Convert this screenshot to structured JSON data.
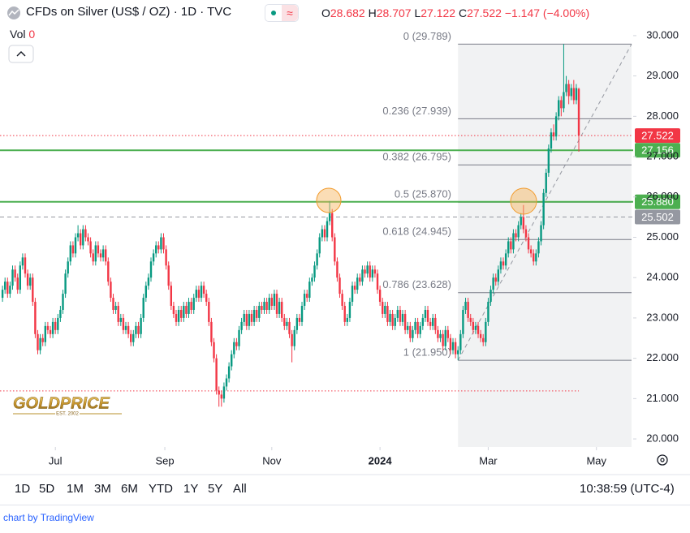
{
  "header": {
    "title": "CFDs on Silver (US$ / OZ) · 1D · TVC",
    "o": "O",
    "h": "H",
    "l": "L",
    "c": "C",
    "change": "−1.147 (−4.00%)",
    "vol": "Vol",
    "vol_value": 0
  },
  "chart_data": {
    "type": "candlestick",
    "up_color": "#089981",
    "down_color": "#f23645",
    "ohlc": [
      [
        23.5,
        23.8,
        23.4,
        23.7
      ],
      [
        23.7,
        24.0,
        23.6,
        23.9
      ],
      [
        23.9,
        24.0,
        23.5,
        23.6
      ],
      [
        23.6,
        23.9,
        23.5,
        23.8
      ],
      [
        23.8,
        24.3,
        23.7,
        24.2
      ],
      [
        24.2,
        24.3,
        23.9,
        24.0
      ],
      [
        24.0,
        24.1,
        23.6,
        23.7
      ],
      [
        23.7,
        24.4,
        23.6,
        24.3
      ],
      [
        24.3,
        24.6,
        24.2,
        24.5
      ],
      [
        24.5,
        24.6,
        24.0,
        24.1
      ],
      [
        24.1,
        24.2,
        23.7,
        23.8
      ],
      [
        23.8,
        24.1,
        23.7,
        24.0
      ],
      [
        24.0,
        24.1,
        23.3,
        23.4
      ],
      [
        23.4,
        23.5,
        22.5,
        22.6
      ],
      [
        22.6,
        22.7,
        22.1,
        22.2
      ],
      [
        22.2,
        22.6,
        22.1,
        22.5
      ],
      [
        22.5,
        22.6,
        22.3,
        22.4
      ],
      [
        22.4,
        22.9,
        22.3,
        22.8
      ],
      [
        22.8,
        22.9,
        22.6,
        22.7
      ],
      [
        22.7,
        22.8,
        22.5,
        22.6
      ],
      [
        22.6,
        23.0,
        22.5,
        22.9
      ],
      [
        22.9,
        23.0,
        22.6,
        22.7
      ],
      [
        22.7,
        23.1,
        22.6,
        23.0
      ],
      [
        23.0,
        23.3,
        22.9,
        23.2
      ],
      [
        23.2,
        23.7,
        23.1,
        23.6
      ],
      [
        23.6,
        24.2,
        23.5,
        24.1
      ],
      [
        24.1,
        24.5,
        24.0,
        24.4
      ],
      [
        24.4,
        24.9,
        24.3,
        24.8
      ],
      [
        24.8,
        24.9,
        24.5,
        24.6
      ],
      [
        24.6,
        25.1,
        24.5,
        25.0
      ],
      [
        25.0,
        25.3,
        24.9,
        25.1
      ],
      [
        25.1,
        25.2,
        24.7,
        24.8
      ],
      [
        24.8,
        25.3,
        24.7,
        25.2
      ],
      [
        25.2,
        25.3,
        24.9,
        25.0
      ],
      [
        25.0,
        25.1,
        24.8,
        24.9
      ],
      [
        24.9,
        25.0,
        24.5,
        24.6
      ],
      [
        24.6,
        24.7,
        24.3,
        24.4
      ],
      [
        24.4,
        24.9,
        24.3,
        24.8
      ],
      [
        24.8,
        24.9,
        24.5,
        24.6
      ],
      [
        24.6,
        24.7,
        24.4,
        24.5
      ],
      [
        24.5,
        24.8,
        24.4,
        24.7
      ],
      [
        24.7,
        24.8,
        24.3,
        24.4
      ],
      [
        24.4,
        24.5,
        23.8,
        23.9
      ],
      [
        23.9,
        24.0,
        23.4,
        23.5
      ],
      [
        23.5,
        23.6,
        23.1,
        23.2
      ],
      [
        23.2,
        23.4,
        23.1,
        23.3
      ],
      [
        23.3,
        23.4,
        22.8,
        22.9
      ],
      [
        22.9,
        23.1,
        22.8,
        23.0
      ],
      [
        23.0,
        23.1,
        22.6,
        22.7
      ],
      [
        22.7,
        22.9,
        22.6,
        22.8
      ],
      [
        22.8,
        22.9,
        22.5,
        22.6
      ],
      [
        22.6,
        22.7,
        22.3,
        22.4
      ],
      [
        22.4,
        22.7,
        22.3,
        22.6
      ],
      [
        22.6,
        22.9,
        22.5,
        22.8
      ],
      [
        22.8,
        22.9,
        22.5,
        22.6
      ],
      [
        22.6,
        23.1,
        22.5,
        23.0
      ],
      [
        23.0,
        23.6,
        22.9,
        23.5
      ],
      [
        23.5,
        23.9,
        23.4,
        23.8
      ],
      [
        23.8,
        24.1,
        23.7,
        24.0
      ],
      [
        24.0,
        24.5,
        23.9,
        24.4
      ],
      [
        24.4,
        24.7,
        24.3,
        24.6
      ],
      [
        24.6,
        24.9,
        24.5,
        24.8
      ],
      [
        24.8,
        24.9,
        24.6,
        24.7
      ],
      [
        24.7,
        25.1,
        24.6,
        25.0
      ],
      [
        25.0,
        25.1,
        24.6,
        24.7
      ],
      [
        24.7,
        24.8,
        24.2,
        24.3
      ],
      [
        24.3,
        24.4,
        23.7,
        23.8
      ],
      [
        23.8,
        23.9,
        23.2,
        23.3
      ],
      [
        23.3,
        23.4,
        23.0,
        23.1
      ],
      [
        23.1,
        23.2,
        22.8,
        22.9
      ],
      [
        22.9,
        23.3,
        22.8,
        23.2
      ],
      [
        23.2,
        23.3,
        22.9,
        23.0
      ],
      [
        23.0,
        23.4,
        22.9,
        23.3
      ],
      [
        23.3,
        23.4,
        23.0,
        23.1
      ],
      [
        23.1,
        23.5,
        23.0,
        23.4
      ],
      [
        23.4,
        23.5,
        23.1,
        23.2
      ],
      [
        23.2,
        23.6,
        23.1,
        23.5
      ],
      [
        23.5,
        23.8,
        23.4,
        23.7
      ],
      [
        23.7,
        23.8,
        23.4,
        23.5
      ],
      [
        23.5,
        23.9,
        23.4,
        23.8
      ],
      [
        23.8,
        23.9,
        23.5,
        23.6
      ],
      [
        23.6,
        23.7,
        23.3,
        23.4
      ],
      [
        23.4,
        23.5,
        22.8,
        22.9
      ],
      [
        22.9,
        23.0,
        22.3,
        22.4
      ],
      [
        22.4,
        22.5,
        21.9,
        22.0
      ],
      [
        22.0,
        22.1,
        21.1,
        21.2
      ],
      [
        21.2,
        21.3,
        20.8,
        21.1
      ],
      [
        21.1,
        21.2,
        20.8,
        21.0
      ],
      [
        21.0,
        21.4,
        20.9,
        21.3
      ],
      [
        21.3,
        21.6,
        21.2,
        21.5
      ],
      [
        21.5,
        21.9,
        21.4,
        21.8
      ],
      [
        21.8,
        22.2,
        21.7,
        22.1
      ],
      [
        22.1,
        22.5,
        22.0,
        22.4
      ],
      [
        22.4,
        22.5,
        22.2,
        22.3
      ],
      [
        22.3,
        22.8,
        22.2,
        22.7
      ],
      [
        22.7,
        23.0,
        22.6,
        22.9
      ],
      [
        22.9,
        23.2,
        22.8,
        23.1
      ],
      [
        23.1,
        23.2,
        22.7,
        22.8
      ],
      [
        22.8,
        23.2,
        22.7,
        23.1
      ],
      [
        23.1,
        23.2,
        22.8,
        22.9
      ],
      [
        22.9,
        23.3,
        22.8,
        23.2
      ],
      [
        23.2,
        23.3,
        22.9,
        23.0
      ],
      [
        23.0,
        23.4,
        22.9,
        23.3
      ],
      [
        23.3,
        23.4,
        23.1,
        23.2
      ],
      [
        23.2,
        23.5,
        23.1,
        23.4
      ],
      [
        23.4,
        23.5,
        23.1,
        23.2
      ],
      [
        23.2,
        23.6,
        23.1,
        23.5
      ],
      [
        23.5,
        23.6,
        23.2,
        23.3
      ],
      [
        23.3,
        23.7,
        23.2,
        23.6
      ],
      [
        23.6,
        23.7,
        23.0,
        23.1
      ],
      [
        23.1,
        23.5,
        23.0,
        23.4
      ],
      [
        23.4,
        23.5,
        22.9,
        23.0
      ],
      [
        23.0,
        23.1,
        22.7,
        22.8
      ],
      [
        22.8,
        23.0,
        22.7,
        22.9
      ],
      [
        22.9,
        23.0,
        22.5,
        22.6
      ],
      [
        22.6,
        22.7,
        21.9,
        22.3
      ],
      [
        22.3,
        22.8,
        22.2,
        22.7
      ],
      [
        22.7,
        23.1,
        22.6,
        23.0
      ],
      [
        23.0,
        23.1,
        22.8,
        22.9
      ],
      [
        22.9,
        23.4,
        22.8,
        23.3
      ],
      [
        23.3,
        23.7,
        23.2,
        23.6
      ],
      [
        23.6,
        23.7,
        23.4,
        23.5
      ],
      [
        23.5,
        24.0,
        23.4,
        23.9
      ],
      [
        23.9,
        24.1,
        23.8,
        24.0
      ],
      [
        24.0,
        24.4,
        23.9,
        24.3
      ],
      [
        24.3,
        24.7,
        24.2,
        24.6
      ],
      [
        24.6,
        25.1,
        24.5,
        25.0
      ],
      [
        25.0,
        25.3,
        24.9,
        25.2
      ],
      [
        25.2,
        25.3,
        24.9,
        25.0
      ],
      [
        25.0,
        25.5,
        24.9,
        25.4
      ],
      [
        25.4,
        25.9,
        25.3,
        25.6
      ],
      [
        25.6,
        25.7,
        24.9,
        25.0
      ],
      [
        25.0,
        25.1,
        24.3,
        24.4
      ],
      [
        24.4,
        24.5,
        23.9,
        24.0
      ],
      [
        24.0,
        24.1,
        23.5,
        23.6
      ],
      [
        23.6,
        23.7,
        23.2,
        23.3
      ],
      [
        23.3,
        23.4,
        22.8,
        22.9
      ],
      [
        22.9,
        23.1,
        22.8,
        23.0
      ],
      [
        23.0,
        23.5,
        22.9,
        23.4
      ],
      [
        23.4,
        23.9,
        23.3,
        23.8
      ],
      [
        23.8,
        23.9,
        23.6,
        23.7
      ],
      [
        23.7,
        24.1,
        23.6,
        24.0
      ],
      [
        24.0,
        24.1,
        23.8,
        23.9
      ],
      [
        23.9,
        24.3,
        23.8,
        24.2
      ],
      [
        24.2,
        24.3,
        24.0,
        24.1
      ],
      [
        24.1,
        24.4,
        24.0,
        24.3
      ],
      [
        24.3,
        24.4,
        23.9,
        24.0
      ],
      [
        24.0,
        24.3,
        23.9,
        24.2
      ],
      [
        24.2,
        24.3,
        24.0,
        24.1
      ],
      [
        24.1,
        24.2,
        23.6,
        23.7
      ],
      [
        23.7,
        23.8,
        23.3,
        23.4
      ],
      [
        23.4,
        23.5,
        23.0,
        23.1
      ],
      [
        23.1,
        23.4,
        23.0,
        23.3
      ],
      [
        23.3,
        23.4,
        22.8,
        22.9
      ],
      [
        22.9,
        23.2,
        22.8,
        23.1
      ],
      [
        23.1,
        23.2,
        22.7,
        22.8
      ],
      [
        22.8,
        23.1,
        22.7,
        23.0
      ],
      [
        23.0,
        23.3,
        22.9,
        23.2
      ],
      [
        23.2,
        23.3,
        22.8,
        22.9
      ],
      [
        22.9,
        23.2,
        22.8,
        23.1
      ],
      [
        23.1,
        23.2,
        22.6,
        22.7
      ],
      [
        22.7,
        22.9,
        22.6,
        22.8
      ],
      [
        22.8,
        22.9,
        22.4,
        22.5
      ],
      [
        22.5,
        22.8,
        22.4,
        22.7
      ],
      [
        22.7,
        23.0,
        22.6,
        22.9
      ],
      [
        22.9,
        23.0,
        22.5,
        22.6
      ],
      [
        22.6,
        22.9,
        22.5,
        22.8
      ],
      [
        22.8,
        23.1,
        22.7,
        23.0
      ],
      [
        23.0,
        23.3,
        22.9,
        23.2
      ],
      [
        23.2,
        23.3,
        22.8,
        22.9
      ],
      [
        22.9,
        23.0,
        22.7,
        22.8
      ],
      [
        22.8,
        23.1,
        22.7,
        23.0
      ],
      [
        23.0,
        23.1,
        22.6,
        22.7
      ],
      [
        22.7,
        22.8,
        22.4,
        22.5
      ],
      [
        22.5,
        22.7,
        22.4,
        22.6
      ],
      [
        22.6,
        22.7,
        22.2,
        22.3
      ],
      [
        22.3,
        22.8,
        22.2,
        22.7
      ],
      [
        22.7,
        22.8,
        22.4,
        22.5
      ],
      [
        22.5,
        22.6,
        22.1,
        22.2
      ],
      [
        22.2,
        22.5,
        22.1,
        22.4
      ],
      [
        22.4,
        22.5,
        22.0,
        22.1
      ],
      [
        22.1,
        22.3,
        21.95,
        22.2
      ],
      [
        22.2,
        22.7,
        22.1,
        22.6
      ],
      [
        22.6,
        23.3,
        22.5,
        23.2
      ],
      [
        23.2,
        23.5,
        23.1,
        23.4
      ],
      [
        23.4,
        23.5,
        22.9,
        23.0
      ],
      [
        23.0,
        23.1,
        22.8,
        22.9
      ],
      [
        22.9,
        23.0,
        22.6,
        22.7
      ],
      [
        22.7,
        22.9,
        22.6,
        22.8
      ],
      [
        22.8,
        22.9,
        22.5,
        22.6
      ],
      [
        22.6,
        22.7,
        22.4,
        22.5
      ],
      [
        22.5,
        22.6,
        22.3,
        22.4
      ],
      [
        22.4,
        23.0,
        22.3,
        22.9
      ],
      [
        22.9,
        23.5,
        22.8,
        23.4
      ],
      [
        23.4,
        23.8,
        23.3,
        23.7
      ],
      [
        23.7,
        24.1,
        23.6,
        24.0
      ],
      [
        24.0,
        24.1,
        23.8,
        23.9
      ],
      [
        23.9,
        24.3,
        23.8,
        24.2
      ],
      [
        24.2,
        24.5,
        24.1,
        24.4
      ],
      [
        24.4,
        24.5,
        24.2,
        24.3
      ],
      [
        24.3,
        24.7,
        24.2,
        24.6
      ],
      [
        24.6,
        25.0,
        24.5,
        24.9
      ],
      [
        24.9,
        25.0,
        24.6,
        24.7
      ],
      [
        24.7,
        25.2,
        24.6,
        25.1
      ],
      [
        25.1,
        25.2,
        24.9,
        25.0
      ],
      [
        25.0,
        25.4,
        24.9,
        25.3
      ],
      [
        25.3,
        25.6,
        25.2,
        25.5
      ],
      [
        25.5,
        25.8,
        25.1,
        25.2
      ],
      [
        25.2,
        25.3,
        24.9,
        25.0
      ],
      [
        25.0,
        25.1,
        24.6,
        24.7
      ],
      [
        24.7,
        24.8,
        24.5,
        24.6
      ],
      [
        24.6,
        24.7,
        24.3,
        24.4
      ],
      [
        24.4,
        24.7,
        24.3,
        24.6
      ],
      [
        24.6,
        25.0,
        24.5,
        24.9
      ],
      [
        24.9,
        25.4,
        24.8,
        25.3
      ],
      [
        25.3,
        26.2,
        25.2,
        26.1
      ],
      [
        26.1,
        26.7,
        26.0,
        26.6
      ],
      [
        26.6,
        27.3,
        26.5,
        27.2
      ],
      [
        27.2,
        27.7,
        27.1,
        27.6
      ],
      [
        27.6,
        27.8,
        27.4,
        27.5
      ],
      [
        27.5,
        28.1,
        27.4,
        28.0
      ],
      [
        28.0,
        28.5,
        27.9,
        28.4
      ],
      [
        28.4,
        28.5,
        28.0,
        28.2
      ],
      [
        28.2,
        29.79,
        28.1,
        28.6
      ],
      [
        28.6,
        29.0,
        28.5,
        28.8
      ],
      [
        28.8,
        28.9,
        28.3,
        28.5
      ],
      [
        28.5,
        28.8,
        28.4,
        28.7
      ],
      [
        28.7,
        28.9,
        28.3,
        28.4
      ],
      [
        28.4,
        28.8,
        28.3,
        28.7
      ],
      [
        28.682,
        28.707,
        27.122,
        27.522
      ]
    ],
    "xlim": [
      -1,
      250.6
    ],
    "xticks": [
      {
        "value": 21,
        "label": "Jul"
      },
      {
        "value": 64.5,
        "label": "Sep"
      },
      {
        "value": 107,
        "label": "Nov"
      },
      {
        "value": 150,
        "label": "2024",
        "bold": true
      },
      {
        "value": 193,
        "label": "Mar"
      },
      {
        "value": 236,
        "label": "May"
      }
    ],
    "ylim": [
      19.8,
      30.28
    ],
    "yticks": [
      {
        "value": 20,
        "label": "20.000"
      },
      {
        "value": 21,
        "label": "21.000"
      },
      {
        "value": 22,
        "label": "22.000"
      },
      {
        "value": 23,
        "label": "23.000"
      },
      {
        "value": 24,
        "label": "24.000"
      },
      {
        "value": 25,
        "label": "25.000"
      },
      {
        "value": 26,
        "label": "26.000"
      },
      {
        "value": 27,
        "label": "27.000"
      },
      {
        "value": 28,
        "label": "28.000"
      },
      {
        "value": 29,
        "label": "29.000"
      },
      {
        "value": 30,
        "label": "30.000"
      }
    ],
    "grid": false,
    "fib": {
      "start": 181,
      "color": "#787b86",
      "levels": [
        {
          "value": 29.789,
          "label": "0 (29.789)"
        },
        {
          "value": 27.939,
          "label": "0.236 (27.939)"
        },
        {
          "value": 26.795,
          "label": "0.382 (26.795)"
        },
        {
          "value": 25.87,
          "label": "0.5 (25.870)"
        },
        {
          "value": 24.945,
          "label": "0.618 (24.945)"
        },
        {
          "value": 23.628,
          "label": "0.786 (23.628)"
        },
        {
          "value": 21.95,
          "label": "1 (21.950)"
        }
      ]
    },
    "lines": [
      {
        "value": 27.522,
        "label": "27.522",
        "color": "#f23645",
        "style": "dotted"
      },
      {
        "value": 27.156,
        "label": "27.156",
        "color": "#4caf50",
        "style": "solid"
      },
      {
        "value": 25.88,
        "label": "25.880",
        "color": "#4caf50",
        "style": "solid"
      },
      {
        "value": 25.502,
        "label": "25.502",
        "color": "#9598a1",
        "style": "dashed"
      },
      {
        "value": 21.19,
        "color": "#f23645",
        "style": "dotted"
      }
    ]
  },
  "logo": {
    "name": "GOLDPRICE",
    "est": "EST. 2002"
  },
  "toolbar": {
    "ranges": [
      "1D",
      "5D",
      "1M",
      "3M",
      "6M",
      "YTD",
      "1Y",
      "5Y",
      "All"
    ],
    "time": "10:38:59 (UTC-4)"
  },
  "footer": "chart by TradingView"
}
